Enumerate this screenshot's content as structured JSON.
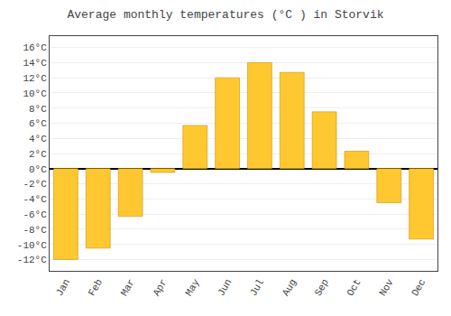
{
  "chart_data": {
    "type": "bar",
    "title": "Average monthly temperatures (°C ) in Storvik",
    "categories": [
      "Jan",
      "Feb",
      "Mar",
      "Apr",
      "May",
      "Jun",
      "Jul",
      "Aug",
      "Sep",
      "Oct",
      "Nov",
      "Dec"
    ],
    "values": [
      -12,
      -10.5,
      -6.3,
      -0.5,
      5.7,
      12.0,
      14.0,
      12.7,
      7.5,
      2.3,
      -4.5,
      -9.3
    ],
    "color": "#FFC830",
    "ylim": [
      -13.5,
      17.5
    ],
    "yticks": [
      {
        "value": -12,
        "label": "-12°C"
      },
      {
        "value": -10,
        "label": "-10°C"
      },
      {
        "value": -8,
        "label": "-8°C"
      },
      {
        "value": -6,
        "label": "-6°C"
      },
      {
        "value": -4,
        "label": "-4°C"
      },
      {
        "value": -2,
        "label": "-2°C"
      },
      {
        "value": 0,
        "label": "0°C"
      },
      {
        "value": 2,
        "label": "2°C"
      },
      {
        "value": 4,
        "label": "4°C"
      },
      {
        "value": 6,
        "label": "6°C"
      },
      {
        "value": 8,
        "label": "8°C"
      },
      {
        "value": 10,
        "label": "10°C"
      },
      {
        "value": 12,
        "label": "12°C"
      },
      {
        "value": 14,
        "label": "14°C"
      },
      {
        "value": 16,
        "label": "16°C"
      }
    ],
    "grid": true
  }
}
